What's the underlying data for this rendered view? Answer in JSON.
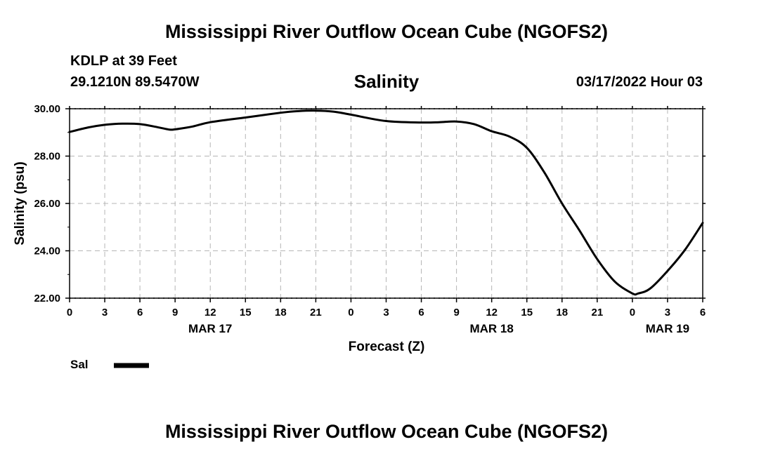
{
  "page": {
    "title_top": "Mississippi River Outflow Ocean Cube (NGOFS2)",
    "title_bottom": "Mississippi River Outflow Ocean Cube (NGOFS2)",
    "station": "KDLP at 39 Feet",
    "coords": "29.1210N  89.5470W",
    "datetime": "03/17/2022 Hour 03"
  },
  "chart_data": {
    "type": "line",
    "title": "Salinity",
    "xlabel": "Forecast (Z)",
    "ylabel": "Salinity (psu)",
    "ylim": [
      22,
      30
    ],
    "xlim": [
      0,
      54
    ],
    "grid": true,
    "yticks": [
      22,
      24,
      26,
      28,
      30
    ],
    "ytick_labels": [
      "22.00",
      "24.00",
      "26.00",
      "28.00",
      "30.00"
    ],
    "xticks": [
      0,
      3,
      6,
      9,
      12,
      15,
      18,
      21,
      24,
      27,
      30,
      33,
      36,
      39,
      42,
      45,
      48,
      51,
      54
    ],
    "xtick_labels": [
      "0",
      "3",
      "6",
      "9",
      "12",
      "15",
      "18",
      "21",
      "0",
      "3",
      "6",
      "9",
      "12",
      "15",
      "18",
      "21",
      "0",
      "3",
      "6"
    ],
    "date_labels": [
      {
        "x": 12,
        "label": "MAR 17"
      },
      {
        "x": 36,
        "label": "MAR 18"
      },
      {
        "x": 51,
        "label": "MAR 19"
      }
    ],
    "legend": {
      "label": "Sal",
      "position": "bottom-left",
      "color": "#000000"
    },
    "series": [
      {
        "name": "Sal",
        "color": "#000000",
        "x": [
          0,
          1.5,
          3,
          4.5,
          6,
          7.5,
          8.5,
          9,
          10.5,
          12,
          15,
          18,
          19.5,
          21,
          22.5,
          24,
          27,
          30,
          31.5,
          33,
          34.5,
          36,
          37.5,
          39,
          40.5,
          42,
          43.5,
          45,
          46.5,
          48,
          48.5,
          49.5,
          51,
          52.5,
          54
        ],
        "values": [
          29.02,
          29.2,
          29.32,
          29.37,
          29.35,
          29.22,
          29.12,
          29.13,
          29.25,
          29.43,
          29.63,
          29.83,
          29.9,
          29.92,
          29.88,
          29.75,
          29.48,
          29.42,
          29.43,
          29.46,
          29.35,
          29.05,
          28.83,
          28.35,
          27.3,
          26.0,
          24.85,
          23.65,
          22.7,
          22.2,
          22.2,
          22.4,
          23.15,
          24.05,
          25.18
        ]
      }
    ]
  }
}
